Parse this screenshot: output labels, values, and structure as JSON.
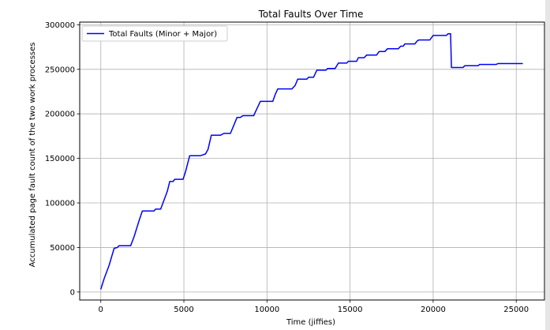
{
  "chart_data": {
    "type": "line",
    "title": "Total Faults Over Time",
    "xlabel": "Time (jiffies)",
    "ylabel": "Accumulated page fault count of the two work processes",
    "xlim": [
      -1270,
      26700
    ],
    "ylim": [
      -9000,
      303000
    ],
    "xticks": [
      0,
      5000,
      10000,
      15000,
      20000,
      25000
    ],
    "yticks": [
      0,
      50000,
      100000,
      150000,
      200000,
      250000,
      300000
    ],
    "xtick_labels": [
      "0",
      "5000",
      "10000",
      "15000",
      "20000",
      "25000"
    ],
    "ytick_labels": [
      "0",
      "50000",
      "100000",
      "150000",
      "200000",
      "250000",
      "300000"
    ],
    "grid": true,
    "legend_position": "top-left",
    "series": [
      {
        "name": "Total Faults (Minor + Major)",
        "color": "#0000ff",
        "points": [
          [
            0,
            3000
          ],
          [
            200,
            15000
          ],
          [
            500,
            30000
          ],
          [
            800,
            49000
          ],
          [
            1000,
            50000
          ],
          [
            1100,
            52000
          ],
          [
            1800,
            52000
          ],
          [
            2000,
            62000
          ],
          [
            2300,
            80000
          ],
          [
            2500,
            91000
          ],
          [
            3200,
            91000
          ],
          [
            3300,
            93000
          ],
          [
            3600,
            93000
          ],
          [
            3800,
            103000
          ],
          [
            4000,
            113000
          ],
          [
            4150,
            124000
          ],
          [
            4350,
            124000
          ],
          [
            4450,
            126500
          ],
          [
            4950,
            126500
          ],
          [
            5100,
            135000
          ],
          [
            5350,
            153000
          ],
          [
            6000,
            153000
          ],
          [
            6300,
            155000
          ],
          [
            6450,
            160000
          ],
          [
            6650,
            176000
          ],
          [
            7200,
            176000
          ],
          [
            7400,
            178000
          ],
          [
            7800,
            178000
          ],
          [
            8000,
            187000
          ],
          [
            8200,
            196000
          ],
          [
            8400,
            196000
          ],
          [
            8550,
            198000
          ],
          [
            9200,
            198000
          ],
          [
            9400,
            206000
          ],
          [
            9600,
            214000
          ],
          [
            10350,
            214000
          ],
          [
            10500,
            222000
          ],
          [
            10650,
            228000
          ],
          [
            11500,
            228000
          ],
          [
            11700,
            232000
          ],
          [
            11850,
            239000
          ],
          [
            12400,
            239000
          ],
          [
            12500,
            241000
          ],
          [
            12800,
            241000
          ],
          [
            13000,
            249000
          ],
          [
            13550,
            249000
          ],
          [
            13650,
            251000
          ],
          [
            14100,
            251000
          ],
          [
            14300,
            257000
          ],
          [
            14800,
            257000
          ],
          [
            14900,
            259000
          ],
          [
            15400,
            259000
          ],
          [
            15500,
            263000
          ],
          [
            15850,
            263000
          ],
          [
            16000,
            266000
          ],
          [
            16600,
            266000
          ],
          [
            16750,
            270000
          ],
          [
            17100,
            270000
          ],
          [
            17250,
            273000
          ],
          [
            17900,
            273000
          ],
          [
            18050,
            276000
          ],
          [
            18200,
            276000
          ],
          [
            18300,
            278500
          ],
          [
            18900,
            278500
          ],
          [
            19050,
            282000
          ],
          [
            19150,
            283000
          ],
          [
            19800,
            283000
          ],
          [
            20000,
            288000
          ],
          [
            20800,
            288000
          ],
          [
            20900,
            290000
          ],
          [
            21050,
            290000
          ],
          [
            21100,
            252000
          ],
          [
            21800,
            252000
          ],
          [
            21900,
            254000
          ],
          [
            22700,
            254000
          ],
          [
            22800,
            255500
          ],
          [
            23800,
            255500
          ],
          [
            23900,
            256500
          ],
          [
            25400,
            256500
          ]
        ]
      }
    ]
  }
}
